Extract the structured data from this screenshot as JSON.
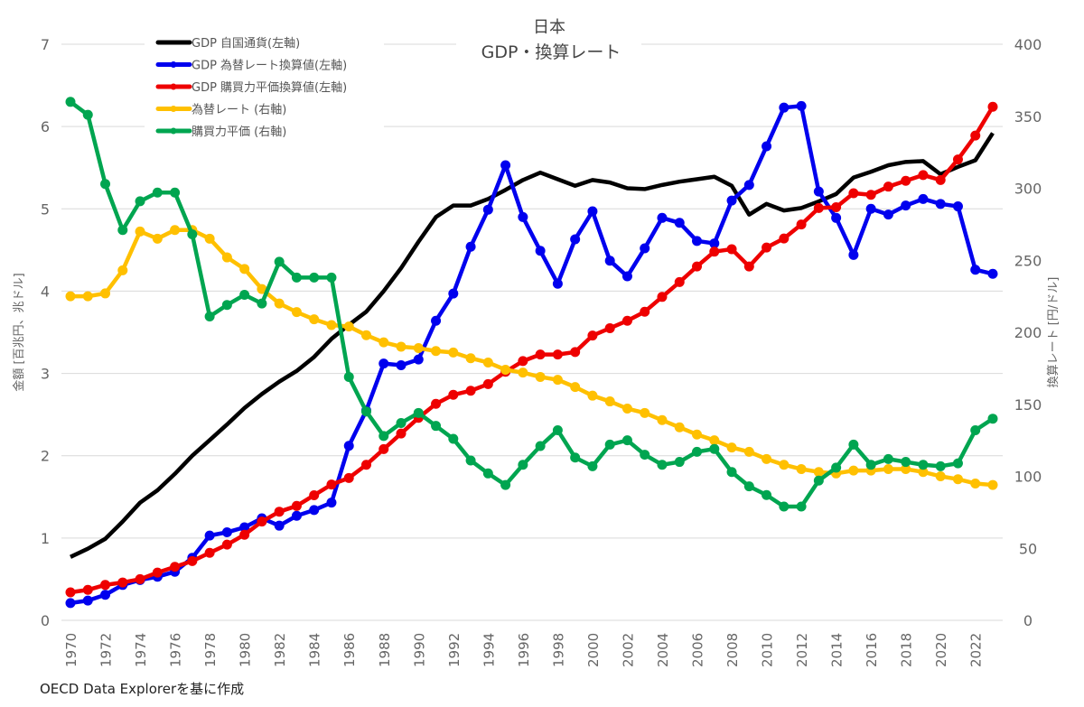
{
  "chart_data": {
    "type": "line",
    "title": "日本",
    "subtitle": "GDP・換算レート",
    "ylabel_left": "金額 [百兆円、兆ドル]",
    "ylabel_right": "換算レート [円/ドル]",
    "ylim_left": [
      0,
      7
    ],
    "ylim_right": [
      0,
      400
    ],
    "yticks_left": [
      "0",
      "1",
      "2",
      "3",
      "4",
      "5",
      "6",
      "7"
    ],
    "yticks_right": [
      "0",
      "50",
      "100",
      "150",
      "200",
      "250",
      "300",
      "350",
      "400"
    ],
    "xlim": [
      1970,
      2023
    ],
    "xticks": [
      "1970",
      "1972",
      "1974",
      "1976",
      "1978",
      "1980",
      "1982",
      "1984",
      "1986",
      "1988",
      "1990",
      "1992",
      "1994",
      "1996",
      "1998",
      "2000",
      "2002",
      "2004",
      "2006",
      "2008",
      "2010",
      "2012",
      "2014",
      "2016",
      "2018",
      "2020",
      "2022"
    ],
    "grid": true,
    "legend_position": "top-left",
    "source": "OECD Data Explorerを基に作成",
    "series": [
      {
        "name": "GDP 自国通貨(左軸)",
        "axis": "left",
        "color": "#000000",
        "markers": false,
        "values": [
          0.77,
          0.87,
          0.99,
          1.2,
          1.43,
          1.58,
          1.78,
          2.0,
          2.19,
          2.38,
          2.58,
          2.75,
          2.9,
          3.03,
          3.2,
          3.42,
          3.59,
          3.75,
          4.0,
          4.28,
          4.6,
          4.9,
          5.04,
          5.04,
          5.12,
          5.23,
          5.35,
          5.44,
          5.36,
          5.28,
          5.35,
          5.32,
          5.25,
          5.24,
          5.29,
          5.33,
          5.36,
          5.39,
          5.28,
          4.93,
          5.06,
          4.98,
          5.01,
          5.09,
          5.18,
          5.38,
          5.45,
          5.53,
          5.57,
          5.58,
          5.42,
          5.51,
          5.59,
          5.92
        ]
      },
      {
        "name": "GDP 為替レート換算値(左軸)",
        "axis": "left",
        "color": "#0000ee",
        "markers": true,
        "values": [
          0.21,
          0.24,
          0.31,
          0.43,
          0.49,
          0.53,
          0.59,
          0.76,
          1.03,
          1.07,
          1.13,
          1.24,
          1.15,
          1.27,
          1.34,
          1.43,
          2.12,
          2.55,
          3.12,
          3.1,
          3.17,
          3.64,
          3.97,
          4.54,
          4.99,
          5.53,
          4.9,
          4.49,
          4.09,
          4.63,
          4.97,
          4.37,
          4.18,
          4.52,
          4.89,
          4.83,
          4.61,
          4.58,
          5.1,
          5.29,
          5.76,
          6.23,
          6.25,
          5.21,
          4.89,
          4.44,
          5.0,
          4.93,
          5.04,
          5.12,
          5.06,
          5.03,
          4.26,
          4.21
        ]
      },
      {
        "name": "GDP 購買力平価換算値(左軸)",
        "axis": "left",
        "color": "#ee0000",
        "markers": true,
        "values": [
          0.34,
          0.37,
          0.43,
          0.46,
          0.5,
          0.58,
          0.65,
          0.72,
          0.82,
          0.92,
          1.04,
          1.2,
          1.32,
          1.39,
          1.52,
          1.65,
          1.73,
          1.89,
          2.08,
          2.27,
          2.46,
          2.63,
          2.74,
          2.79,
          2.87,
          3.02,
          3.15,
          3.23,
          3.23,
          3.26,
          3.46,
          3.55,
          3.64,
          3.75,
          3.93,
          4.11,
          4.3,
          4.48,
          4.51,
          4.3,
          4.53,
          4.64,
          4.81,
          5.01,
          5.02,
          5.19,
          5.17,
          5.27,
          5.34,
          5.41,
          5.35,
          5.6,
          5.89,
          6.24
        ]
      },
      {
        "name": "為替レート (右軸)",
        "axis": "right",
        "color": "#ffc000",
        "markers": true,
        "values": [
          225,
          225,
          227,
          243,
          270,
          265,
          271,
          271,
          265,
          252,
          244,
          230,
          220,
          214,
          209,
          205,
          204,
          198,
          193,
          190,
          189,
          187,
          186,
          182,
          179,
          174,
          172,
          169,
          167,
          162,
          156,
          152,
          147,
          144,
          139,
          134,
          129,
          125,
          120,
          117,
          112,
          108,
          105,
          103,
          102,
          104,
          104,
          105,
          105,
          103,
          100,
          98,
          95,
          94
        ]
      },
      {
        "name": "購買力平価 (右軸)",
        "axis": "right",
        "color": "#00a550",
        "markers": true,
        "values": [
          360,
          351,
          303,
          271,
          291,
          297,
          297,
          268,
          211,
          219,
          226,
          220,
          249,
          238,
          238,
          238,
          169,
          145,
          128,
          137,
          144,
          135,
          126,
          111,
          102,
          94,
          108,
          121,
          132,
          113,
          107,
          122,
          125,
          115,
          108,
          110,
          117,
          119,
          103,
          93,
          87,
          79,
          79,
          97,
          106,
          122,
          108,
          112,
          110,
          108,
          107,
          109,
          132,
          140
        ]
      }
    ]
  }
}
